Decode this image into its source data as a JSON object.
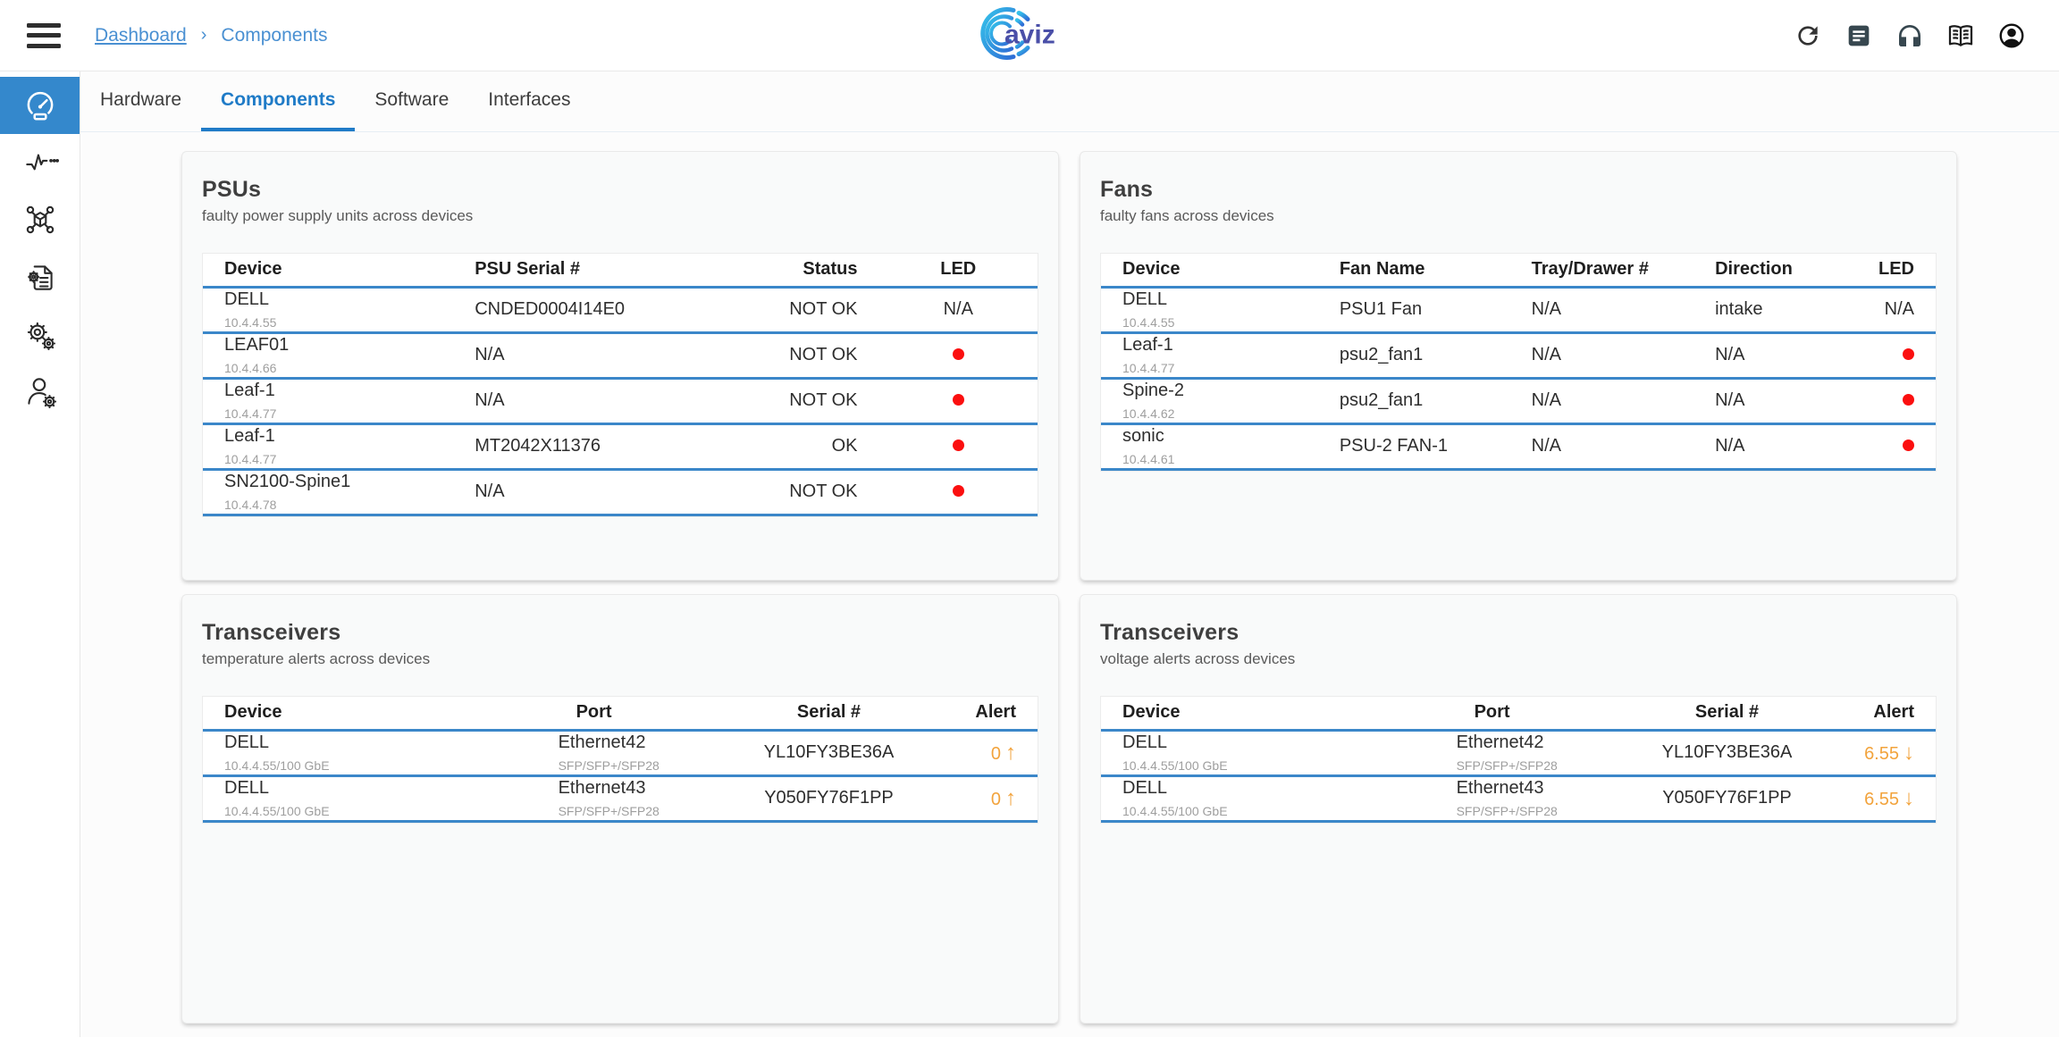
{
  "colors": {
    "accent": "#1f7bc7",
    "link": "#4a90d2",
    "divider": "#3b87c9",
    "red": "#fb0f0f",
    "orange": "#f2a33c",
    "sidebar_active": "#3488cc",
    "topbar_icon": "#37474f"
  },
  "topbar": {
    "breadcrumb": [
      "Dashboard",
      "Components"
    ],
    "breadcrumb_separator": "›",
    "logo_text": "aviz",
    "icons": [
      {
        "name": "refresh"
      },
      {
        "name": "feedback"
      },
      {
        "name": "support-headset"
      },
      {
        "name": "documentation-book"
      },
      {
        "name": "account"
      }
    ]
  },
  "sidebar": {
    "items": [
      {
        "name": "dashboard",
        "active": true
      },
      {
        "name": "health-activity",
        "active": false
      },
      {
        "name": "topology",
        "active": false
      },
      {
        "name": "device-config",
        "active": false
      },
      {
        "name": "settings",
        "active": false
      },
      {
        "name": "user-management",
        "active": false
      }
    ]
  },
  "tabs": {
    "items": [
      {
        "label": "Hardware",
        "active": false
      },
      {
        "label": "Components",
        "active": true
      },
      {
        "label": "Software",
        "active": false
      },
      {
        "label": "Interfaces",
        "active": false
      }
    ]
  },
  "cards": [
    {
      "title": "PSUs",
      "subtitle": "faulty power supply units across devices",
      "clip": true,
      "columns": [
        {
          "label": "Device",
          "width": "30%",
          "align": "left"
        },
        {
          "label": "PSU Serial #",
          "width": "35%",
          "align": "left"
        },
        {
          "label": "Status",
          "width": "16%",
          "align": "right"
        },
        {
          "label": "LED",
          "width": "19%",
          "align": "center"
        }
      ],
      "rows": [
        {
          "cells": [
            {
              "t": "device",
              "main": "DELL",
              "sub": "10.4.4.55"
            },
            {
              "t": "text",
              "v": "CNDED0004I14E0"
            },
            {
              "t": "text",
              "v": "NOT OK"
            },
            {
              "t": "led",
              "v": "N/A"
            }
          ]
        },
        {
          "cells": [
            {
              "t": "device",
              "main": "LEAF01",
              "sub": "10.4.4.66"
            },
            {
              "t": "text",
              "v": "N/A"
            },
            {
              "t": "text",
              "v": "NOT OK"
            },
            {
              "t": "led",
              "v": "red"
            }
          ]
        },
        {
          "cells": [
            {
              "t": "device",
              "main": "Leaf-1",
              "sub": "10.4.4.77"
            },
            {
              "t": "text",
              "v": "N/A"
            },
            {
              "t": "text",
              "v": "NOT OK"
            },
            {
              "t": "led",
              "v": "red"
            }
          ]
        },
        {
          "cells": [
            {
              "t": "device",
              "main": "Leaf-1",
              "sub": "10.4.4.77"
            },
            {
              "t": "text",
              "v": "MT2042X11376"
            },
            {
              "t": "text",
              "v": "OK"
            },
            {
              "t": "led",
              "v": "red"
            }
          ]
        },
        {
          "cells": [
            {
              "t": "device",
              "main": "SN2100-Spine1",
              "sub": "10.4.4.78"
            },
            {
              "t": "text",
              "v": "N/A"
            },
            {
              "t": "text",
              "v": "NOT OK"
            },
            {
              "t": "led",
              "v": "red"
            }
          ]
        }
      ]
    },
    {
      "title": "Fans",
      "subtitle": "faulty fans across devices",
      "clip": true,
      "columns": [
        {
          "label": "Device",
          "width": "26%",
          "align": "left"
        },
        {
          "label": "Fan Name",
          "width": "23%",
          "align": "left"
        },
        {
          "label": "Tray/Drawer #",
          "width": "22%",
          "align": "left"
        },
        {
          "label": "Direction",
          "width": "17%",
          "align": "left"
        },
        {
          "label": "LED",
          "width": "12%",
          "align": "right"
        }
      ],
      "rows": [
        {
          "cells": [
            {
              "t": "device",
              "main": "DELL",
              "sub": "10.4.4.55"
            },
            {
              "t": "text",
              "v": "PSU1 Fan"
            },
            {
              "t": "text",
              "v": "N/A"
            },
            {
              "t": "text",
              "v": "intake"
            },
            {
              "t": "led",
              "v": "N/A"
            }
          ]
        },
        {
          "cells": [
            {
              "t": "device",
              "main": "Leaf-1",
              "sub": "10.4.4.77"
            },
            {
              "t": "text",
              "v": "psu2_fan1"
            },
            {
              "t": "text",
              "v": "N/A"
            },
            {
              "t": "text",
              "v": "N/A"
            },
            {
              "t": "led",
              "v": "red"
            }
          ]
        },
        {
          "cells": [
            {
              "t": "device",
              "main": "Spine-2",
              "sub": "10.4.4.62"
            },
            {
              "t": "text",
              "v": "psu2_fan1"
            },
            {
              "t": "text",
              "v": "N/A"
            },
            {
              "t": "text",
              "v": "N/A"
            },
            {
              "t": "led",
              "v": "red"
            }
          ]
        },
        {
          "cells": [
            {
              "t": "device",
              "main": "sonic",
              "sub": "10.4.4.61"
            },
            {
              "t": "text",
              "v": "PSU-2 FAN-1"
            },
            {
              "t": "text",
              "v": "N/A"
            },
            {
              "t": "text",
              "v": "N/A"
            },
            {
              "t": "led",
              "v": "red"
            }
          ]
        }
      ]
    },
    {
      "title": "Transceivers",
      "subtitle": "temperature alerts across devices",
      "clip": false,
      "columns": [
        {
          "label": "Device",
          "width": "40%",
          "align": "left"
        },
        {
          "label": "Port",
          "width": "24%",
          "align": "left",
          "hpadl": "44px"
        },
        {
          "label": "Serial #",
          "width": "22%",
          "align": "center"
        },
        {
          "label": "Alert",
          "width": "14%",
          "align": "right"
        }
      ],
      "rows": [
        {
          "cells": [
            {
              "t": "device",
              "main": "DELL",
              "sub": "10.4.4.55/100 GbE"
            },
            {
              "t": "port",
              "main": "Ethernet42",
              "sub": "SFP/SFP+/SFP28"
            },
            {
              "t": "text",
              "v": "YL10FY3BE36A"
            },
            {
              "t": "alert",
              "v": "0",
              "dir": "up"
            }
          ]
        },
        {
          "cells": [
            {
              "t": "device",
              "main": "DELL",
              "sub": "10.4.4.55/100 GbE"
            },
            {
              "t": "port",
              "main": "Ethernet43",
              "sub": "SFP/SFP+/SFP28"
            },
            {
              "t": "text",
              "v": "Y050FY76F1PP"
            },
            {
              "t": "alert",
              "v": "0",
              "dir": "up"
            }
          ]
        }
      ]
    },
    {
      "title": "Transceivers",
      "subtitle": "voltage alerts across devices",
      "clip": false,
      "columns": [
        {
          "label": "Device",
          "width": "40%",
          "align": "left"
        },
        {
          "label": "Port",
          "width": "24%",
          "align": "left",
          "hpadl": "44px"
        },
        {
          "label": "Serial #",
          "width": "22%",
          "align": "center"
        },
        {
          "label": "Alert",
          "width": "14%",
          "align": "right"
        }
      ],
      "rows": [
        {
          "cells": [
            {
              "t": "device",
              "main": "DELL",
              "sub": "10.4.4.55/100 GbE"
            },
            {
              "t": "port",
              "main": "Ethernet42",
              "sub": "SFP/SFP+/SFP28"
            },
            {
              "t": "text",
              "v": "YL10FY3BE36A"
            },
            {
              "t": "alert",
              "v": "6.55",
              "dir": "down"
            }
          ]
        },
        {
          "cells": [
            {
              "t": "device",
              "main": "DELL",
              "sub": "10.4.4.55/100 GbE"
            },
            {
              "t": "port",
              "main": "Ethernet43",
              "sub": "SFP/SFP+/SFP28"
            },
            {
              "t": "text",
              "v": "Y050FY76F1PP"
            },
            {
              "t": "alert",
              "v": "6.55",
              "dir": "down"
            }
          ]
        }
      ]
    }
  ]
}
